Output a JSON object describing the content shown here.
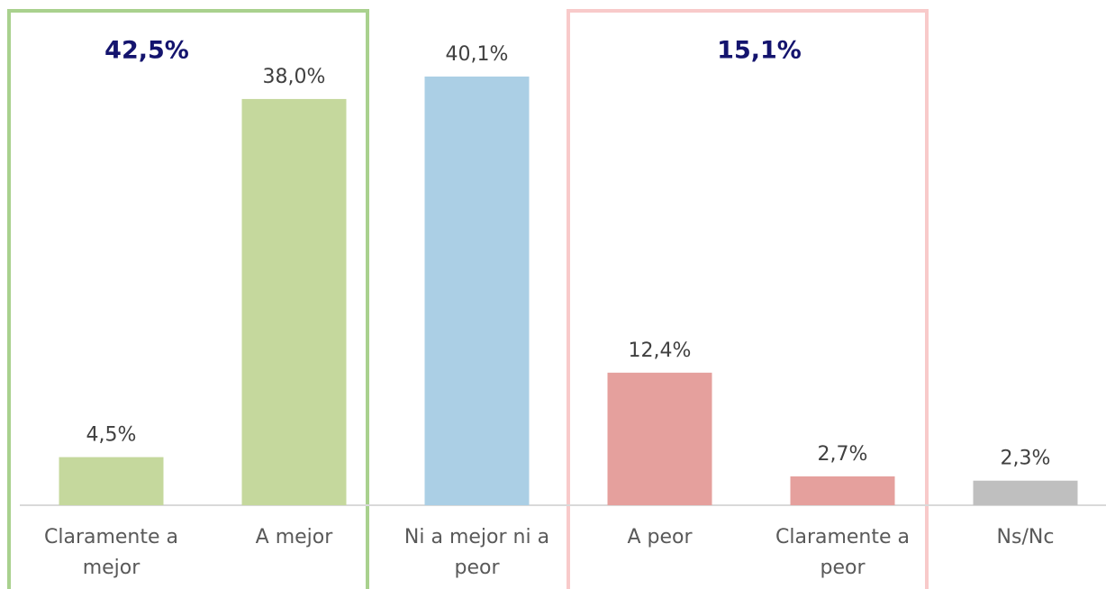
{
  "chart_data": {
    "type": "bar",
    "categories": [
      "Claramente a mejor",
      "A mejor",
      "Ni a mejor ni a peor",
      "A peor",
      "Claramente a peor",
      "Ns/Nc"
    ],
    "values": [
      4.5,
      38.0,
      40.1,
      12.4,
      2.7,
      2.3
    ],
    "value_labels": [
      "4,5%",
      "38,0%",
      "40,1%",
      "12,4%",
      "2,7%",
      "2,3%"
    ],
    "colors": [
      "#c5d89d",
      "#c5d89d",
      "#abcfe5",
      "#e5a09d",
      "#e5a09d",
      "#bfbfbf"
    ],
    "annotations": [
      "42,5%",
      "15,1%"
    ]
  }
}
